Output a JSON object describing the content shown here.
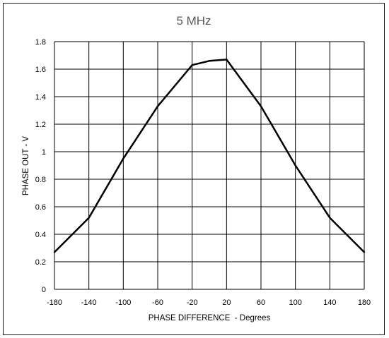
{
  "chart_data": {
    "type": "line",
    "title": "5 MHz",
    "xlabel": "PHASE DIFFERENCE  - Degrees",
    "ylabel": "PHASE OUT - V",
    "xlim": [
      -180,
      180
    ],
    "ylim": [
      0,
      1.8
    ],
    "grid": true,
    "x_ticks": [
      "-180",
      "-140",
      "-100",
      "-60",
      "-20",
      "20",
      "60",
      "100",
      "140",
      "180"
    ],
    "y_ticks": [
      "0",
      "0.2",
      "0.4",
      "0.6",
      "0.8",
      "1",
      "1.2",
      "1.4",
      "1.6",
      "1.8"
    ],
    "series": [
      {
        "color": "#000000",
        "x": [
          -180,
          -140,
          -100,
          -60,
          -20,
          0,
          20,
          60,
          100,
          140,
          180
        ],
        "y": [
          0.27,
          0.52,
          0.95,
          1.33,
          1.63,
          1.66,
          1.67,
          1.33,
          0.9,
          0.52,
          0.27
        ]
      }
    ]
  }
}
